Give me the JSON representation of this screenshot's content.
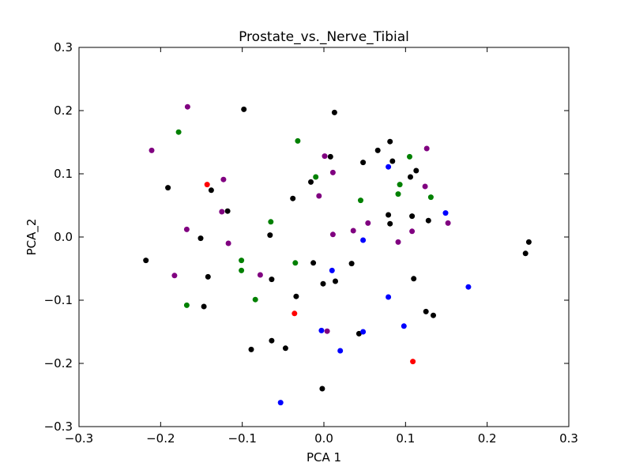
{
  "chart_data": {
    "type": "scatter",
    "title": "Prostate_vs._Nerve_Tibial",
    "xlabel": "PCA 1",
    "ylabel": "PCA_2",
    "xlim": [
      -0.3,
      0.3
    ],
    "ylim": [
      -0.3,
      0.3
    ],
    "xticks": [
      -0.3,
      -0.2,
      -0.1,
      0.0,
      0.1,
      0.2,
      0.3
    ],
    "yticks": [
      -0.3,
      -0.2,
      -0.1,
      0.0,
      0.1,
      0.2,
      0.3
    ],
    "xtick_labels": [
      "−0.3",
      "−0.2",
      "−0.1",
      "0.0",
      "0.1",
      "0.2",
      "0.3"
    ],
    "ytick_labels": [
      "−0.3",
      "−0.2",
      "−0.1",
      "0.0",
      "0.1",
      "0.2",
      "0.3"
    ],
    "grid": false,
    "series": [
      {
        "color": "#000000",
        "points": [
          [
            -0.098,
            0.202
          ],
          [
            0.013,
            0.197
          ],
          [
            0.081,
            0.151
          ],
          [
            0.066,
            0.137
          ],
          [
            0.084,
            0.12
          ],
          [
            0.048,
            0.118
          ],
          [
            0.008,
            0.127
          ],
          [
            0.113,
            0.105
          ],
          [
            0.106,
            0.095
          ],
          [
            -0.016,
            0.087
          ],
          [
            -0.191,
            0.078
          ],
          [
            -0.138,
            0.074
          ],
          [
            -0.038,
            0.061
          ],
          [
            -0.118,
            0.041
          ],
          [
            0.079,
            0.035
          ],
          [
            0.108,
            0.033
          ],
          [
            0.128,
            0.026
          ],
          [
            0.081,
            0.021
          ],
          [
            -0.066,
            0.003
          ],
          [
            -0.151,
            -0.002
          ],
          [
            0.251,
            -0.008
          ],
          [
            0.247,
            -0.026
          ],
          [
            -0.218,
            -0.037
          ],
          [
            -0.013,
            -0.041
          ],
          [
            0.034,
            -0.042
          ],
          [
            -0.142,
            -0.063
          ],
          [
            -0.064,
            -0.067
          ],
          [
            0.014,
            -0.07
          ],
          [
            -0.001,
            -0.074
          ],
          [
            0.11,
            -0.066
          ],
          [
            -0.034,
            -0.094
          ],
          [
            -0.147,
            -0.11
          ],
          [
            0.125,
            -0.118
          ],
          [
            0.134,
            -0.124
          ],
          [
            0.043,
            -0.153
          ],
          [
            -0.064,
            -0.164
          ],
          [
            -0.089,
            -0.178
          ],
          [
            -0.047,
            -0.176
          ],
          [
            -0.002,
            -0.24
          ]
        ]
      },
      {
        "color": "#800080",
        "points": [
          [
            -0.167,
            0.206
          ],
          [
            -0.211,
            0.137
          ],
          [
            0.001,
            0.128
          ],
          [
            0.126,
            0.14
          ],
          [
            0.011,
            0.102
          ],
          [
            -0.123,
            0.091
          ],
          [
            0.124,
            0.08
          ],
          [
            -0.006,
            0.065
          ],
          [
            -0.125,
            0.04
          ],
          [
            0.054,
            0.022
          ],
          [
            0.152,
            0.022
          ],
          [
            -0.168,
            0.012
          ],
          [
            0.036,
            0.01
          ],
          [
            0.108,
            0.009
          ],
          [
            0.011,
            0.004
          ],
          [
            -0.117,
            -0.01
          ],
          [
            0.091,
            -0.008
          ],
          [
            -0.183,
            -0.061
          ],
          [
            -0.078,
            -0.06
          ],
          [
            0.004,
            -0.149
          ]
        ]
      },
      {
        "color": "#008000",
        "points": [
          [
            -0.178,
            0.166
          ],
          [
            -0.032,
            0.152
          ],
          [
            0.105,
            0.127
          ],
          [
            -0.01,
            0.095
          ],
          [
            0.093,
            0.083
          ],
          [
            0.091,
            0.068
          ],
          [
            0.131,
            0.063
          ],
          [
            0.045,
            0.058
          ],
          [
            -0.065,
            0.024
          ],
          [
            -0.101,
            -0.037
          ],
          [
            -0.035,
            -0.041
          ],
          [
            -0.101,
            -0.053
          ],
          [
            -0.084,
            -0.099
          ],
          [
            -0.168,
            -0.108
          ]
        ]
      },
      {
        "color": "#0000ff",
        "points": [
          [
            0.079,
            0.111
          ],
          [
            0.149,
            0.038
          ],
          [
            0.048,
            -0.005
          ],
          [
            0.01,
            -0.053
          ],
          [
            0.177,
            -0.079
          ],
          [
            0.079,
            -0.095
          ],
          [
            0.098,
            -0.141
          ],
          [
            -0.003,
            -0.148
          ],
          [
            0.048,
            -0.15
          ],
          [
            0.02,
            -0.18
          ],
          [
            -0.053,
            -0.262
          ]
        ]
      },
      {
        "color": "#ff0000",
        "points": [
          [
            -0.143,
            0.083
          ],
          [
            -0.036,
            -0.121
          ],
          [
            0.109,
            -0.197
          ]
        ]
      }
    ]
  }
}
